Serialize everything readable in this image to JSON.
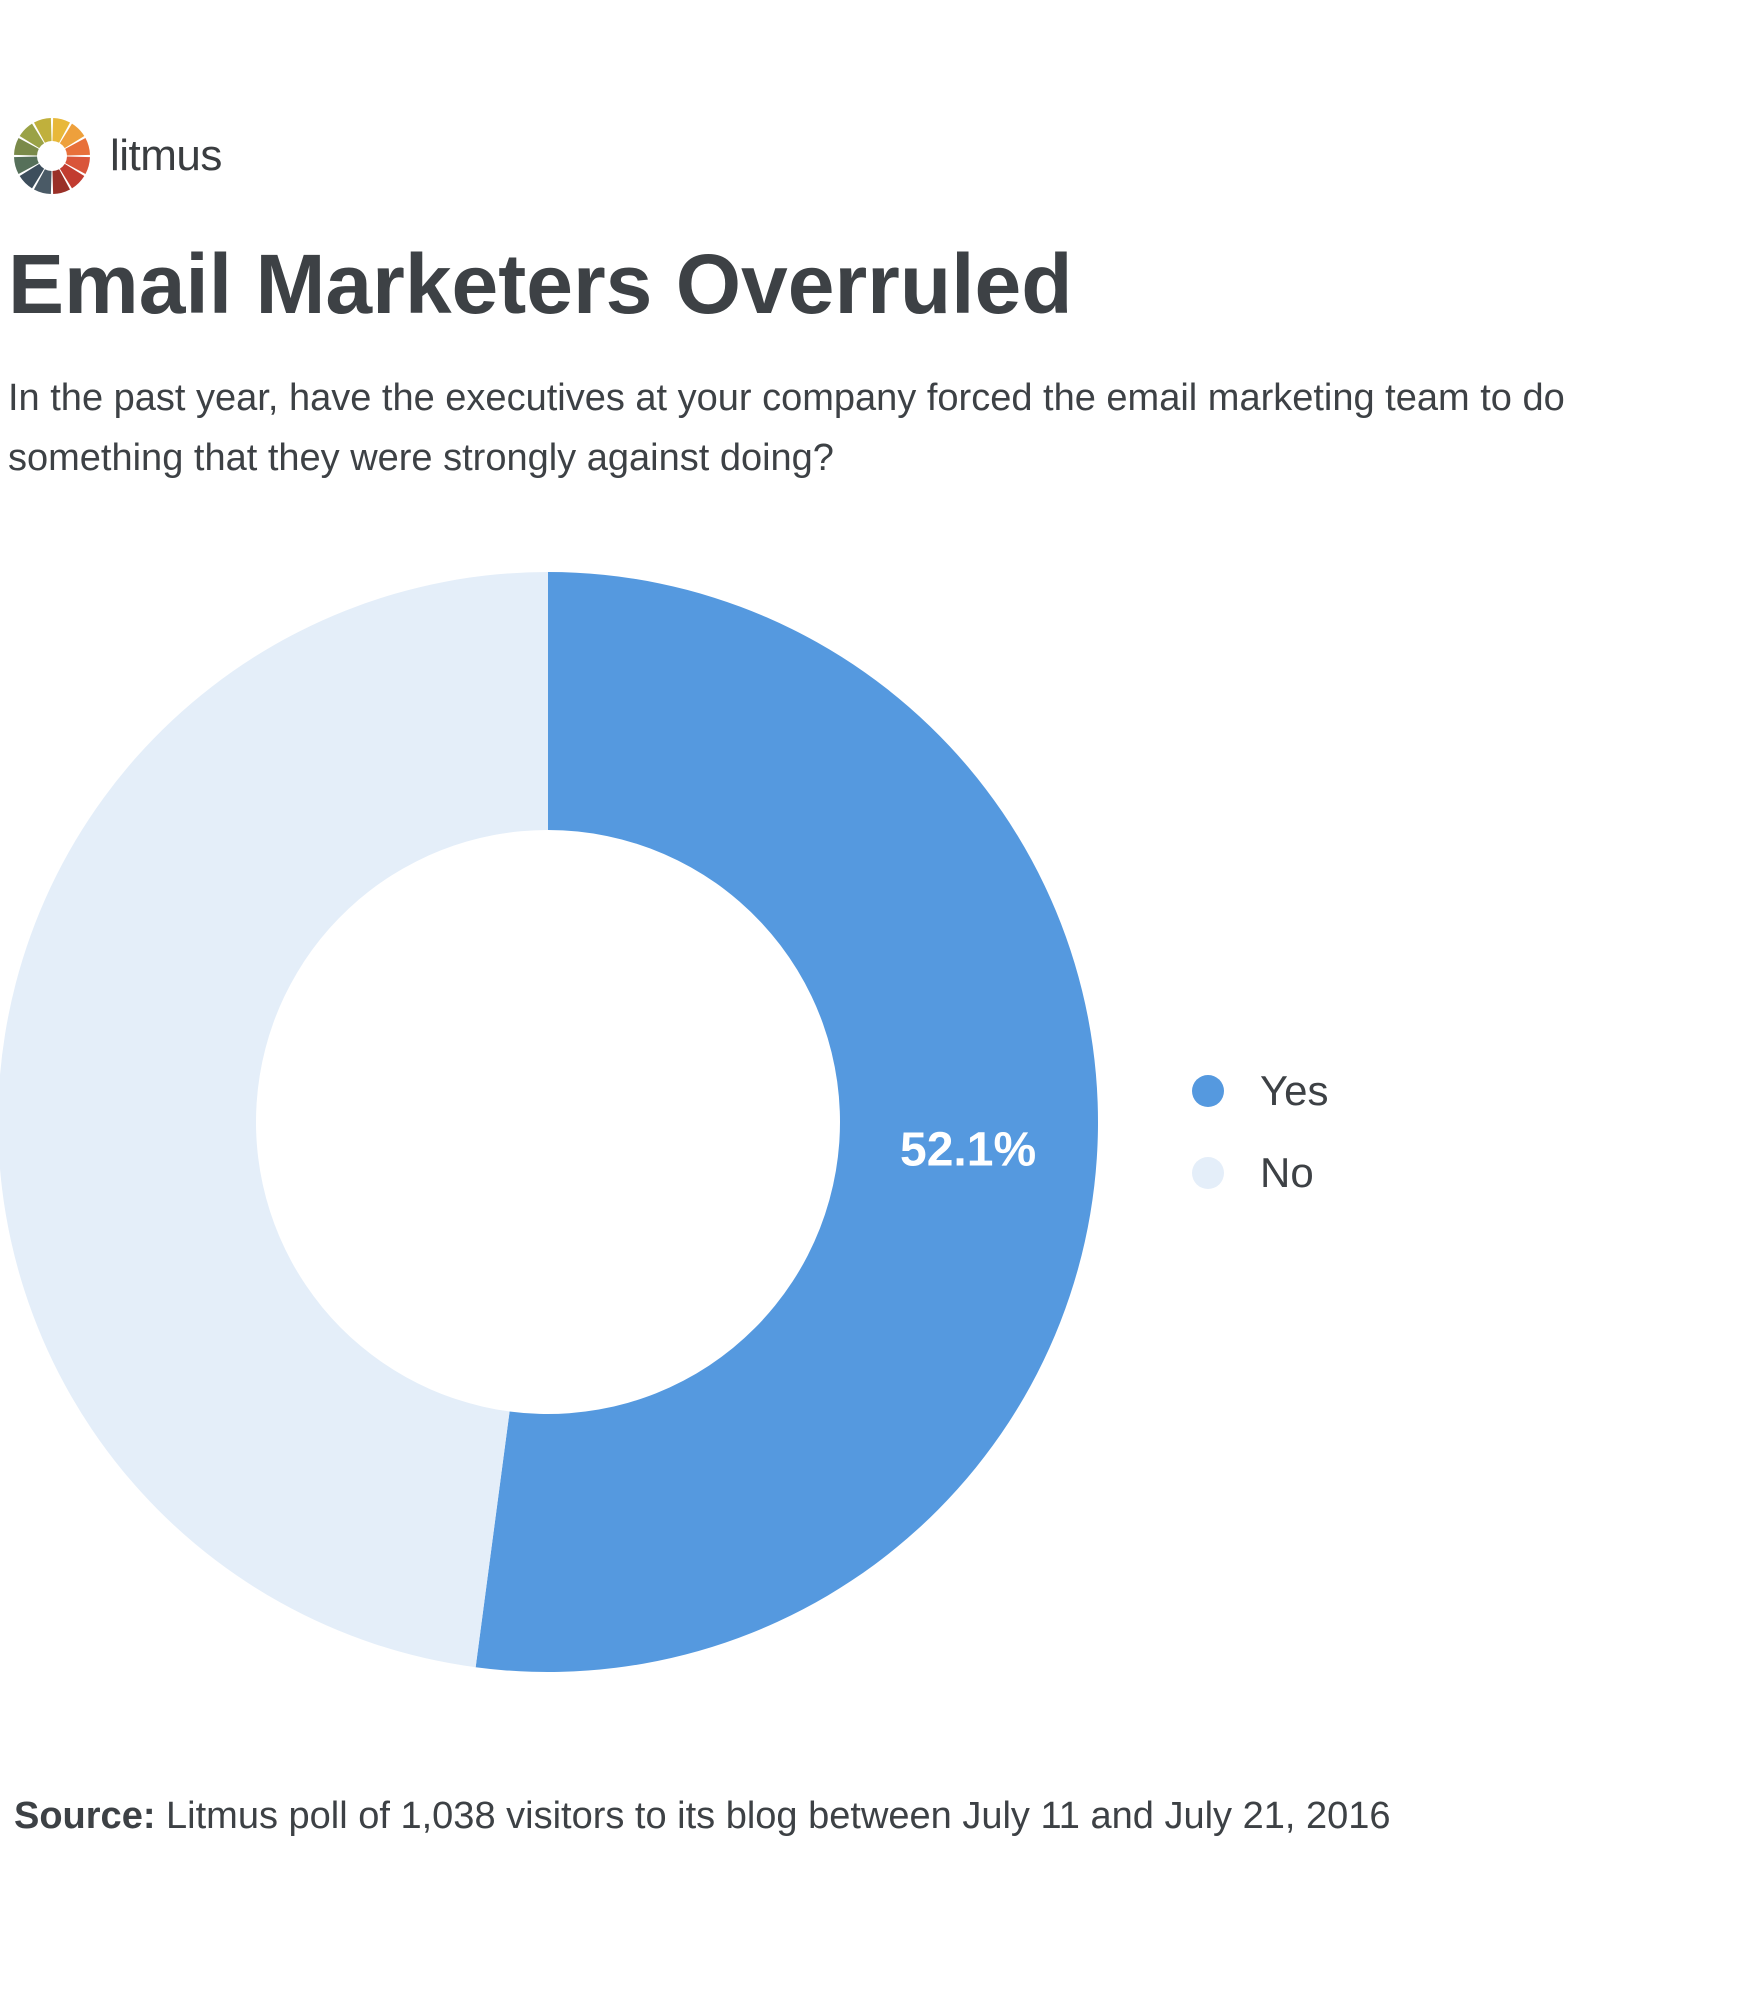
{
  "brand": {
    "name": "litmus",
    "logo_colors": [
      "#e8b83a",
      "#eea03c",
      "#e8703a",
      "#d9553a",
      "#c23c30",
      "#9a3028",
      "#4a5a66",
      "#3d4e5c",
      "#56705a",
      "#7a8a4a",
      "#9aa246",
      "#c0b03c"
    ],
    "logo_icon": "litmus-color-wheel-icon"
  },
  "header": {
    "title": "Email Marketers Overruled",
    "subtitle": "In the past year, have the executives at your company forced the email marketing team to do something that they were strongly against doing?"
  },
  "chart_data": {
    "type": "pie",
    "style": "donut",
    "categories": [
      "Yes",
      "No"
    ],
    "values": [
      52.1,
      47.9
    ],
    "colors": [
      "#5599df",
      "#e4eef9"
    ],
    "data_labels": [
      "52.1%",
      ""
    ],
    "legend": {
      "position": "right",
      "entries": [
        "Yes",
        "No"
      ]
    }
  },
  "footer": {
    "source_label": "Source:",
    "source_text": " Litmus poll of 1,038 visitors to its blog between July 11 and July 21, 2016"
  }
}
